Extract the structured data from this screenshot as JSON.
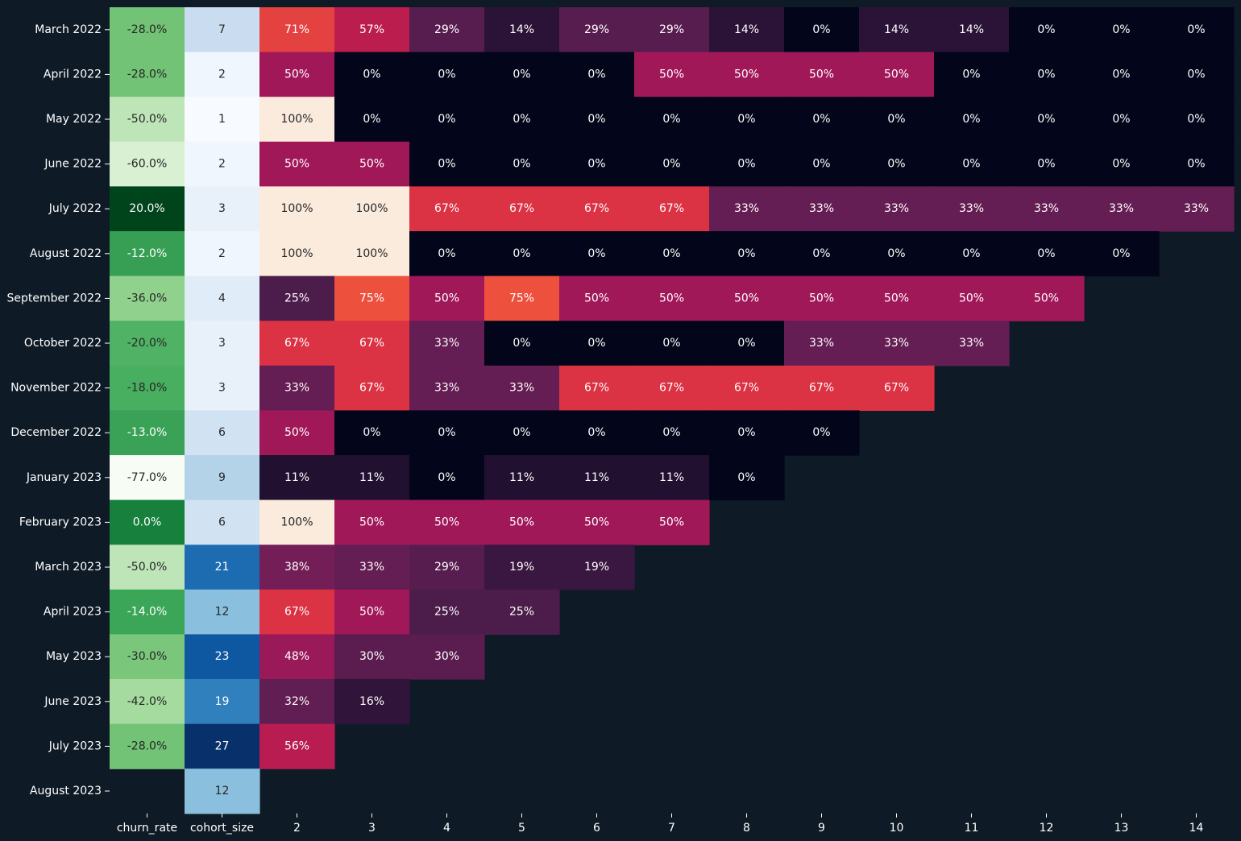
{
  "chart_data": {
    "type": "heatmap",
    "row_labels": [
      "March 2022",
      "April 2022",
      "May 2022",
      "June 2022",
      "July 2022",
      "August 2022",
      "September 2022",
      "October 2022",
      "November 2022",
      "December 2022",
      "January 2023",
      "February 2023",
      "March 2023",
      "April 2023",
      "May 2023",
      "June 2023",
      "July 2023",
      "August 2023"
    ],
    "column_labels": [
      "churn_rate",
      "cohort_size",
      "2",
      "3",
      "4",
      "5",
      "6",
      "7",
      "8",
      "9",
      "10",
      "11",
      "12",
      "13",
      "14"
    ],
    "churn_rate": [
      -28.0,
      -28.0,
      -50.0,
      -60.0,
      20.0,
      -12.0,
      -36.0,
      -20.0,
      -18.0,
      -13.0,
      -77.0,
      0.0,
      -50.0,
      -14.0,
      -30.0,
      -42.0,
      -28.0,
      null
    ],
    "churn_rate_range": [
      -77.0,
      20.0
    ],
    "cohort_size": [
      7,
      2,
      1,
      2,
      3,
      2,
      4,
      3,
      3,
      6,
      9,
      6,
      21,
      12,
      23,
      19,
      27,
      12
    ],
    "cohort_size_range": [
      1,
      27
    ],
    "retention_percent": [
      [
        71,
        57,
        29,
        14,
        29,
        29,
        14,
        0,
        14,
        14,
        0,
        0,
        0
      ],
      [
        50,
        0,
        0,
        0,
        0,
        50,
        50,
        50,
        50,
        0,
        0,
        0,
        0
      ],
      [
        100,
        0,
        0,
        0,
        0,
        0,
        0,
        0,
        0,
        0,
        0,
        0,
        0
      ],
      [
        50,
        50,
        0,
        0,
        0,
        0,
        0,
        0,
        0,
        0,
        0,
        0,
        0
      ],
      [
        100,
        100,
        67,
        67,
        67,
        67,
        33,
        33,
        33,
        33,
        33,
        33,
        33
      ],
      [
        100,
        100,
        0,
        0,
        0,
        0,
        0,
        0,
        0,
        0,
        0,
        0
      ],
      [
        25,
        75,
        50,
        75,
        50,
        50,
        50,
        50,
        50,
        50,
        50
      ],
      [
        67,
        67,
        33,
        0,
        0,
        0,
        0,
        33,
        33,
        33
      ],
      [
        33,
        67,
        33,
        33,
        67,
        67,
        67,
        67,
        67
      ],
      [
        50,
        0,
        0,
        0,
        0,
        0,
        0,
        0
      ],
      [
        11,
        11,
        0,
        11,
        11,
        11,
        0
      ],
      [
        100,
        50,
        50,
        50,
        50,
        50
      ],
      [
        38,
        33,
        29,
        19,
        19
      ],
      [
        67,
        50,
        25,
        25
      ],
      [
        48,
        30,
        30
      ],
      [
        32,
        16
      ],
      [
        56
      ],
      []
    ],
    "retention_range": [
      0,
      100
    ],
    "colormaps": {
      "churn_rate": "Greens",
      "cohort_size": "Blues",
      "retention": "rocket"
    },
    "colors": {
      "background": "#0e1a25",
      "tick_label": "#ffffff"
    },
    "legend": "none"
  }
}
